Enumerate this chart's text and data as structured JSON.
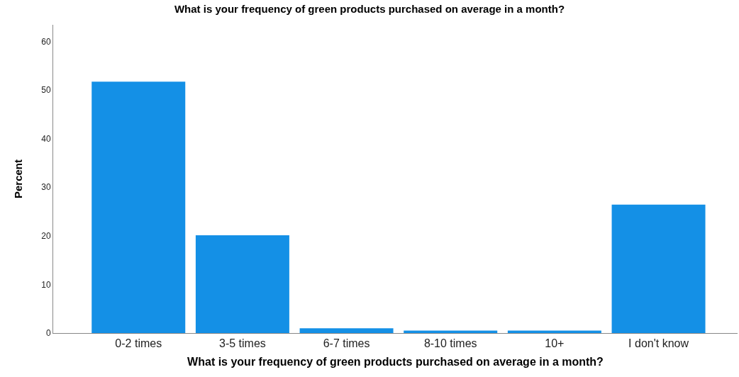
{
  "chart_data": {
    "type": "bar",
    "title": "What is your frequency of green products purchased on average in a month?",
    "xlabel": "What is your frequency of green products purchased on average in a month?",
    "ylabel": "Percent",
    "categories": [
      "0-2 times",
      "3-5 times",
      "6-7 times",
      "8-10 times",
      "10+",
      "I don't know"
    ],
    "values": [
      51.7,
      20.1,
      1.0,
      0.5,
      0.5,
      26.4
    ],
    "color": "#1490e6",
    "ylim": [
      0,
      63.4
    ],
    "yticks": [
      0,
      10,
      20,
      30,
      40,
      50,
      60
    ],
    "legend": false
  }
}
